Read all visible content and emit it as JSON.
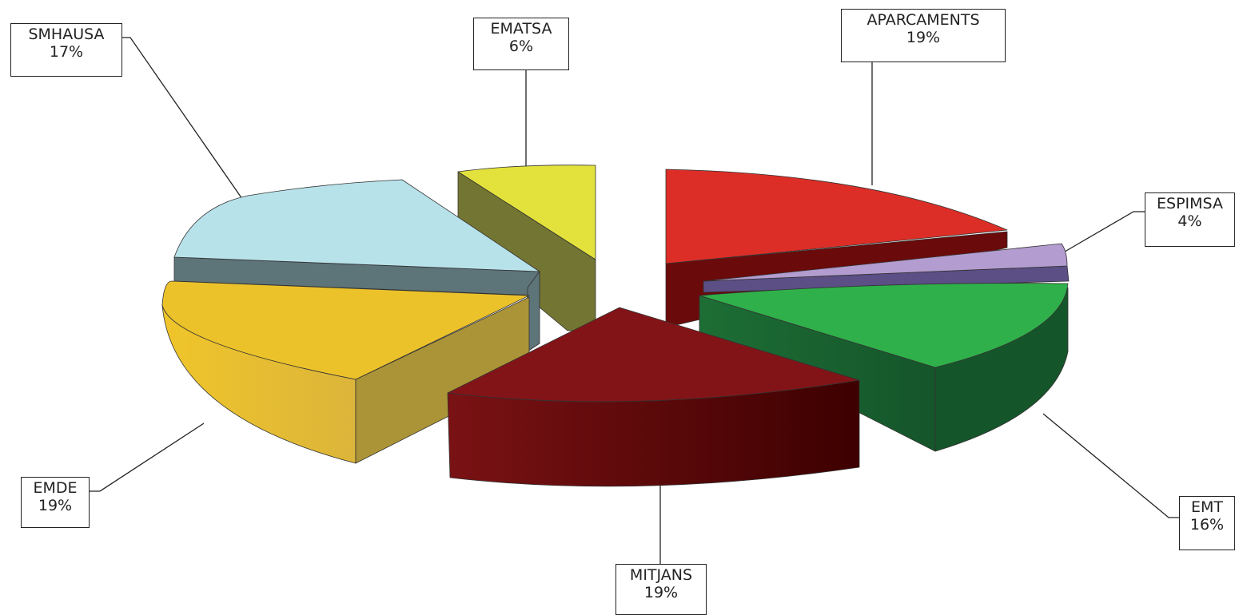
{
  "chart_data": {
    "type": "pie",
    "style": "3d-exploded",
    "slices": [
      {
        "label": "APARCAMENTS",
        "value": 19,
        "display": "19%",
        "color": "#dc2e27"
      },
      {
        "label": "ESPIMSA",
        "value": 4,
        "display": "4%",
        "color": "#b39ccf"
      },
      {
        "label": "EMT",
        "value": 16,
        "display": "16%",
        "color": "#2fb04a"
      },
      {
        "label": "MITJANS",
        "value": 19,
        "display": "19%",
        "color": "#7a1214"
      },
      {
        "label": "EMDE",
        "value": 19,
        "display": "19%",
        "color": "#ecc22a"
      },
      {
        "label": "SMHAUSA",
        "value": 17,
        "display": "17%",
        "color": "#b8e2ea"
      },
      {
        "label": "EMATSA",
        "value": 6,
        "display": "6%",
        "color": "#e3e23c"
      }
    ]
  }
}
